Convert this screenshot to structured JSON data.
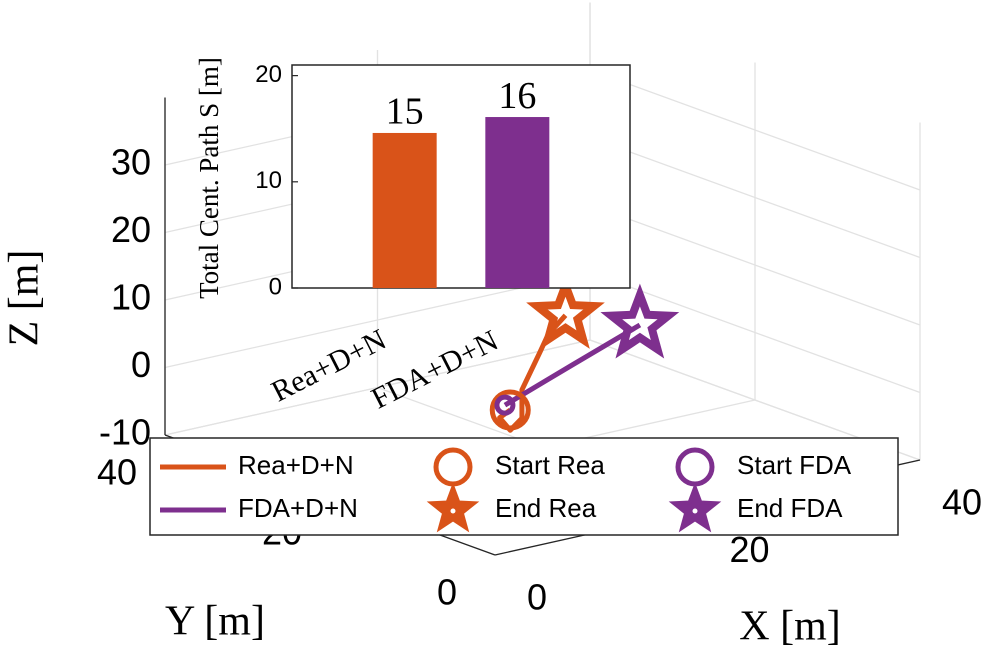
{
  "chart_data": [
    {
      "type": "line3d",
      "xlabel": "X [m]",
      "ylabel": "Y [m]",
      "zlabel": "Z [m]",
      "xlim": [
        0,
        40
      ],
      "ylim": [
        0,
        40
      ],
      "zlim": [
        -10,
        40
      ],
      "xticks": [
        0,
        20,
        40
      ],
      "yticks": [
        0,
        20,
        40
      ],
      "zticks": [
        -10,
        0,
        10,
        20,
        30
      ],
      "grid": true,
      "annotations": [
        "Rea+D+N",
        "FDA+D+N"
      ],
      "series": [
        {
          "name": "Rea+D+N",
          "color": "#d95319",
          "start_name": "Start Rea",
          "end_name": "End Rea",
          "x": [
            9.2,
            8.2,
            9.2,
            10.3,
            10.3,
            12.0,
            12.75,
            14.4
          ],
          "y": [
            10,
            10,
            10,
            10,
            10,
            10,
            10,
            10
          ],
          "z": [
            3.8,
            3.0,
            0.8,
            2.2,
            6.4,
            11.4,
            13.7,
            16.0
          ]
        },
        {
          "name": "FDA+D+N",
          "color": "#7e2f8e",
          "start_name": "Start FDA",
          "end_name": "End FDA",
          "x": [
            8.7,
            15.0,
            21.4
          ],
          "y": [
            10,
            10,
            10
          ],
          "z": [
            4.7,
            8.4,
            12.1
          ]
        }
      ]
    },
    {
      "type": "bar",
      "ylabel": "Total Cent. Path S [m]",
      "categories": [
        null,
        null
      ],
      "values": [
        14.6,
        16.1
      ],
      "value_labels": [
        "15",
        "16"
      ],
      "colors": [
        "#d95319",
        "#7e2f8e"
      ],
      "ylim": [
        0,
        21
      ],
      "yticks": [
        0,
        10,
        20
      ]
    }
  ]
}
